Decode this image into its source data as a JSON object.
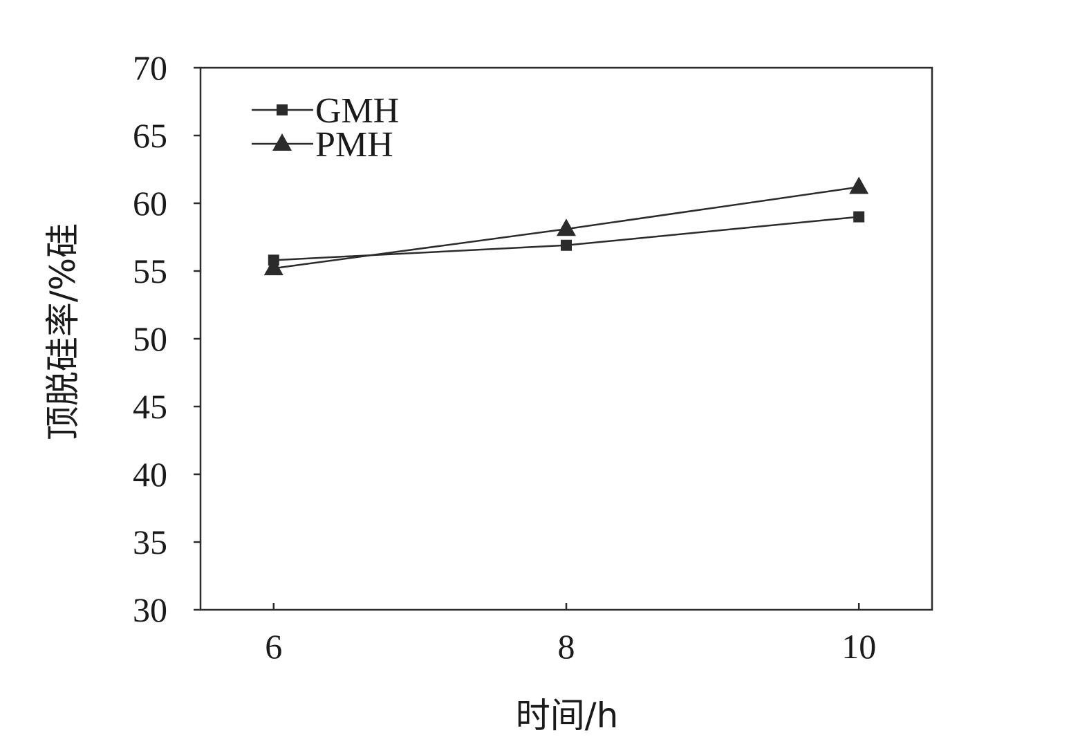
{
  "chart_data": {
    "type": "line",
    "xlabel": "时间/h",
    "ylabel": "顶脱硅率/%硅",
    "x": [
      6,
      8,
      10
    ],
    "xlim": [
      5.5,
      10.5
    ],
    "ylim": [
      30,
      70
    ],
    "yticks": [
      30,
      35,
      40,
      45,
      50,
      55,
      60,
      65,
      70
    ],
    "xticks": [
      6,
      8,
      10
    ],
    "grid": false,
    "legend_position": "top-left",
    "series": [
      {
        "name": "GMH",
        "marker": "square",
        "values": [
          55.8,
          56.9,
          59.0
        ]
      },
      {
        "name": "PMH",
        "marker": "triangle",
        "values": [
          55.2,
          58.1,
          61.2
        ]
      }
    ],
    "colors": {
      "line": "#2b2b2b",
      "axis": "#2b2b2b"
    }
  }
}
